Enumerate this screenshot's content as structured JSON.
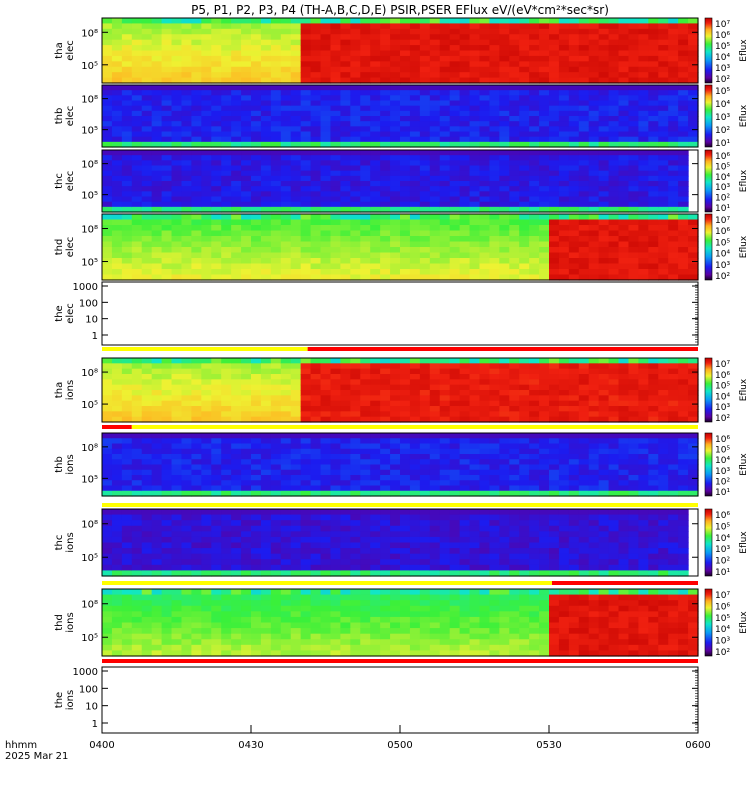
{
  "title": "P5, P1, P2, P3, P4 (TH-A,B,C,D,E) PSIR,PSER EFlux eV/(eV*cm²*sec*sr)",
  "footer": {
    "label": "hhmm",
    "date": "2025 Mar 21"
  },
  "x_ticks": [
    "0400",
    "0430",
    "0500",
    "0530",
    "0600"
  ],
  "colors": {
    "flag_yellow": "#ffff00",
    "flag_red": "#ff0000"
  },
  "chart_data": {
    "type": "heatmap",
    "x_range": [
      "04:00",
      "06:00"
    ],
    "x_unit": "hhmm",
    "colorscale": "rainbow (purple-blue-cyan-green-yellow-red)",
    "panels": [
      {
        "id": "tha-elec",
        "ylabel": [
          "tha",
          "elec"
        ],
        "y_ticks": [
          "10⁸",
          "10⁵"
        ],
        "cbar_label": "Eflux",
        "cbar_ticks": [
          "10⁷",
          "10⁶",
          "10⁵",
          "10⁴",
          "10³",
          "10²"
        ],
        "kind": "spec",
        "has_data": true,
        "regions": [
          {
            "from": 0.0,
            "to": 0.335,
            "level": 0.72
          },
          {
            "from": 0.335,
            "to": 1.0,
            "level": 0.97
          }
        ]
      },
      {
        "id": "thb-elec",
        "ylabel": [
          "thb",
          "elec"
        ],
        "y_ticks": [
          "10⁸",
          "10⁵"
        ],
        "cbar_label": "Eflux",
        "cbar_ticks": [
          "10⁵",
          "10⁴",
          "10³",
          "10²",
          "10¹"
        ],
        "kind": "spec",
        "has_data": true,
        "regions": [
          {
            "from": 0.0,
            "to": 1.0,
            "level": 0.2
          }
        ]
      },
      {
        "id": "thc-elec",
        "ylabel": [
          "thc",
          "elec"
        ],
        "y_ticks": [
          "10⁸",
          "10⁵"
        ],
        "cbar_label": "Eflux",
        "cbar_ticks": [
          "10⁶",
          "10⁵",
          "10⁴",
          "10³",
          "10²",
          "10¹"
        ],
        "kind": "spec",
        "has_data": true,
        "regions": [
          {
            "from": 0.0,
            "to": 0.985,
            "level": 0.18
          }
        ]
      },
      {
        "id": "thd-elec",
        "ylabel": [
          "thd",
          "elec"
        ],
        "y_ticks": [
          "10⁸",
          "10⁵"
        ],
        "cbar_label": "Eflux",
        "cbar_ticks": [
          "10⁷",
          "10⁶",
          "10⁵",
          "10⁴",
          "10³",
          "10²"
        ],
        "kind": "spec",
        "has_data": true,
        "regions": [
          {
            "from": 0.0,
            "to": 0.755,
            "level": 0.66
          },
          {
            "from": 0.755,
            "to": 1.0,
            "level": 0.97
          }
        ]
      },
      {
        "id": "the-elec",
        "ylabel": [
          "the",
          "elec"
        ],
        "y_ticks": [
          "1000",
          "100",
          "10",
          "1"
        ],
        "kind": "empty",
        "has_data": false
      },
      {
        "id": "tha-ions",
        "ylabel": [
          "tha",
          "ions"
        ],
        "y_ticks": [
          "10⁸",
          "10⁵"
        ],
        "cbar_label": "Eflux",
        "cbar_ticks": [
          "10⁷",
          "10⁶",
          "10⁵",
          "10⁴",
          "10³",
          "10²"
        ],
        "kind": "spec",
        "has_data": true,
        "regions": [
          {
            "from": 0.0,
            "to": 0.335,
            "level": 0.72
          },
          {
            "from": 0.335,
            "to": 1.0,
            "level": 0.96
          }
        ]
      },
      {
        "id": "thb-ions",
        "ylabel": [
          "thb",
          "ions"
        ],
        "y_ticks": [
          "10⁸",
          "10⁵"
        ],
        "cbar_label": "Eflux",
        "cbar_ticks": [
          "10⁶",
          "10⁵",
          "10⁴",
          "10³",
          "10²",
          "10¹"
        ],
        "kind": "spec",
        "has_data": true,
        "regions": [
          {
            "from": 0.0,
            "to": 1.0,
            "level": 0.2
          }
        ]
      },
      {
        "id": "thc-ions",
        "ylabel": [
          "thc",
          "ions"
        ],
        "y_ticks": [
          "10⁸",
          "10⁵"
        ],
        "cbar_label": "Eflux",
        "cbar_ticks": [
          "10⁶",
          "10⁵",
          "10⁴",
          "10³",
          "10²",
          "10¹"
        ],
        "kind": "spec",
        "has_data": true,
        "regions": [
          {
            "from": 0.0,
            "to": 0.985,
            "level": 0.16
          }
        ]
      },
      {
        "id": "thd-ions",
        "ylabel": [
          "thd",
          "ions"
        ],
        "y_ticks": [
          "10⁸",
          "10⁵"
        ],
        "cbar_label": "Eflux",
        "cbar_ticks": [
          "10⁷",
          "10⁶",
          "10⁵",
          "10⁴",
          "10³",
          "10²"
        ],
        "kind": "spec",
        "has_data": true,
        "regions": [
          {
            "from": 0.0,
            "to": 0.755,
            "level": 0.62
          },
          {
            "from": 0.755,
            "to": 1.0,
            "level": 0.97
          }
        ]
      },
      {
        "id": "the-ions",
        "ylabel": [
          "the",
          "ions"
        ],
        "y_ticks": [
          "1000",
          "100",
          "10",
          "1"
        ],
        "kind": "empty",
        "has_data": false
      }
    ],
    "flag_bars": [
      {
        "after": "the-elec",
        "segments": [
          {
            "from": 0.0,
            "to": 0.345,
            "color": "yellow"
          },
          {
            "from": 0.345,
            "to": 1.0,
            "color": "red"
          }
        ]
      },
      {
        "after": "tha-ions",
        "segments": [
          {
            "from": 0.0,
            "to": 0.05,
            "color": "red"
          },
          {
            "from": 0.05,
            "to": 1.0,
            "color": "yellow"
          }
        ]
      },
      {
        "after": "thb-ions",
        "segments": [
          {
            "from": 0.0,
            "to": 1.0,
            "color": "yellow"
          }
        ]
      },
      {
        "after": "thc-ions",
        "segments": [
          {
            "from": 0.0,
            "to": 0.755,
            "color": "yellow"
          },
          {
            "from": 0.755,
            "to": 1.0,
            "color": "red"
          }
        ]
      },
      {
        "after": "thd-ions",
        "segments": [
          {
            "from": 0.0,
            "to": 1.0,
            "color": "red"
          }
        ]
      }
    ]
  }
}
